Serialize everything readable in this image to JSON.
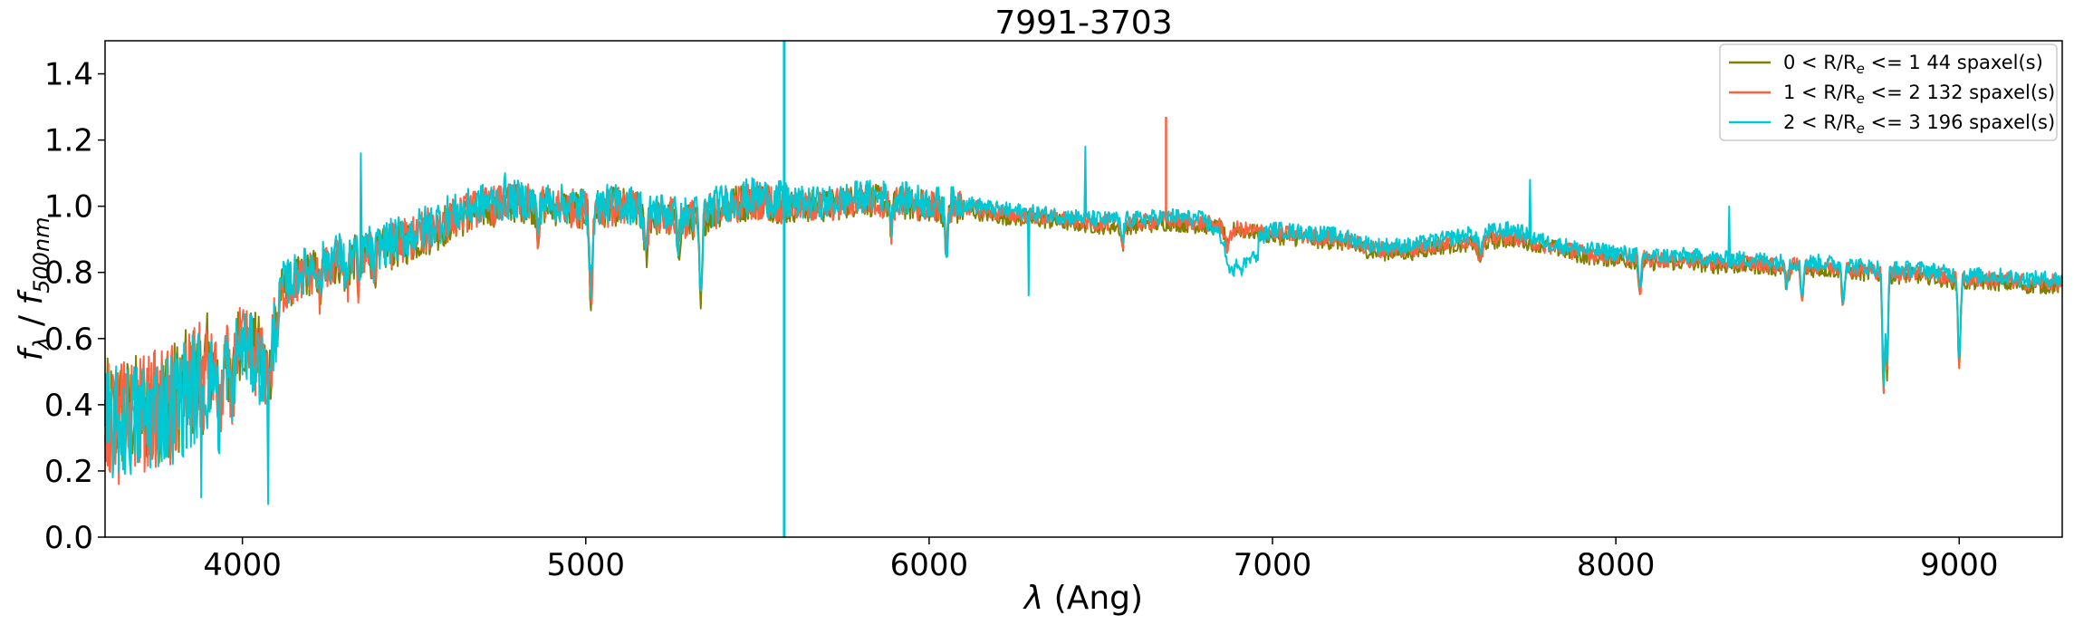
{
  "chart_data": {
    "type": "line",
    "title": "7991-3703",
    "xlabel_symbol": "λ",
    "xlabel_rest": " (Ang)",
    "ylabel_num": "f",
    "ylabel_num_sub": "λ",
    "ylabel_sep": " / ",
    "ylabel_den": "f",
    "ylabel_den_sub": "500nm",
    "xlim": [
      3600,
      9300
    ],
    "ylim": [
      0.0,
      1.5
    ],
    "xticks": [
      4000,
      5000,
      6000,
      7000,
      8000,
      9000
    ],
    "yticks": [
      0.0,
      0.2,
      0.4,
      0.6,
      0.8,
      1.0,
      1.2,
      1.4
    ],
    "ytick_labels": [
      "0.0",
      "0.2",
      "0.4",
      "0.6",
      "0.8",
      "1.0",
      "1.2",
      "1.4"
    ],
    "grid": false,
    "legend_position": "top-right",
    "series": [
      {
        "legend_pre": "0 < R/R",
        "legend_sub": "e",
        "legend_post": " <= 1 44 spaxel(s)",
        "color": "#808000",
        "x": [
          3600,
          3700,
          3800,
          3900,
          3950,
          4000,
          4050,
          4080,
          4100,
          4200,
          4300,
          4400,
          4500,
          4600,
          4700,
          4800,
          4900,
          5000,
          5100,
          5200,
          5300,
          5400,
          5500,
          5600,
          5700,
          5800,
          5900,
          6000,
          6100,
          6200,
          6300,
          6400,
          6500,
          6600,
          6700,
          6800,
          6900,
          7000,
          7100,
          7200,
          7300,
          7400,
          7500,
          7600,
          7700,
          7800,
          7900,
          8000,
          8100,
          8200,
          8300,
          8400,
          8500,
          8600,
          8700,
          8800,
          8900,
          9000,
          9100,
          9200,
          9300
        ],
        "y": [
          0.36,
          0.38,
          0.42,
          0.5,
          0.55,
          0.6,
          0.55,
          0.5,
          0.74,
          0.8,
          0.84,
          0.86,
          0.9,
          0.95,
          0.99,
          1.01,
          1.0,
          0.99,
          1.0,
          0.97,
          0.95,
          1.0,
          1.02,
          1.0,
          1.0,
          1.02,
          1.01,
          1.0,
          0.99,
          0.97,
          0.96,
          0.95,
          0.94,
          0.94,
          0.95,
          0.94,
          0.93,
          0.91,
          0.9,
          0.89,
          0.86,
          0.86,
          0.88,
          0.89,
          0.9,
          0.88,
          0.85,
          0.84,
          0.83,
          0.83,
          0.82,
          0.82,
          0.81,
          0.81,
          0.8,
          0.79,
          0.79,
          0.77,
          0.77,
          0.76,
          0.76
        ]
      },
      {
        "legend_pre": "1 < R/R",
        "legend_sub": "e",
        "legend_post": " <= 2 132 spaxel(s)",
        "color": "#ff6040",
        "x": [
          3600,
          3700,
          3800,
          3900,
          3950,
          4000,
          4050,
          4080,
          4100,
          4200,
          4300,
          4400,
          4500,
          4600,
          4700,
          4800,
          4900,
          5000,
          5100,
          5200,
          5300,
          5400,
          5500,
          5600,
          5700,
          5800,
          5900,
          6000,
          6100,
          6200,
          6300,
          6400,
          6500,
          6600,
          6700,
          6800,
          6900,
          7000,
          7100,
          7200,
          7300,
          7400,
          7500,
          7600,
          7700,
          7800,
          7900,
          8000,
          8100,
          8200,
          8300,
          8400,
          8500,
          8600,
          8700,
          8800,
          8900,
          9000,
          9100,
          9200,
          9300
        ],
        "y": [
          0.35,
          0.37,
          0.41,
          0.49,
          0.54,
          0.58,
          0.53,
          0.48,
          0.73,
          0.8,
          0.84,
          0.87,
          0.91,
          0.96,
          1.0,
          1.01,
          1.0,
          0.99,
          1.0,
          0.98,
          0.96,
          1.0,
          1.02,
          1.0,
          1.0,
          1.02,
          1.01,
          1.0,
          1.0,
          0.98,
          0.97,
          0.96,
          0.95,
          0.95,
          0.96,
          0.95,
          0.93,
          0.92,
          0.91,
          0.9,
          0.87,
          0.87,
          0.89,
          0.9,
          0.91,
          0.88,
          0.86,
          0.85,
          0.84,
          0.84,
          0.83,
          0.83,
          0.82,
          0.82,
          0.81,
          0.8,
          0.8,
          0.78,
          0.78,
          0.77,
          0.77
        ]
      },
      {
        "legend_pre": "2 < R/R",
        "legend_sub": "e",
        "legend_post": " <= 3 196 spaxel(s)",
        "color": "#00c8d2",
        "x": [
          3600,
          3700,
          3800,
          3900,
          3950,
          4000,
          4050,
          4080,
          4100,
          4200,
          4300,
          4400,
          4500,
          4600,
          4700,
          4800,
          4900,
          5000,
          5100,
          5200,
          5300,
          5400,
          5500,
          5600,
          5700,
          5800,
          5900,
          6000,
          6100,
          6200,
          6300,
          6400,
          6500,
          6600,
          6700,
          6800,
          6900,
          7000,
          7100,
          7200,
          7300,
          7400,
          7500,
          7600,
          7700,
          7800,
          7900,
          8000,
          8100,
          8200,
          8300,
          8400,
          8500,
          8600,
          8700,
          8800,
          8900,
          9000,
          9100,
          9200,
          9300
        ],
        "y": [
          0.33,
          0.36,
          0.4,
          0.48,
          0.53,
          0.58,
          0.52,
          0.45,
          0.75,
          0.82,
          0.86,
          0.88,
          0.92,
          0.97,
          1.01,
          1.02,
          1.01,
          1.0,
          1.01,
          0.99,
          0.97,
          1.01,
          1.03,
          1.01,
          1.01,
          1.03,
          1.03,
          1.01,
          1.01,
          0.99,
          0.98,
          0.97,
          0.96,
          0.96,
          0.97,
          0.96,
          0.86,
          0.93,
          0.92,
          0.91,
          0.88,
          0.88,
          0.9,
          0.92,
          0.93,
          0.89,
          0.87,
          0.86,
          0.85,
          0.85,
          0.84,
          0.84,
          0.83,
          0.83,
          0.82,
          0.81,
          0.81,
          0.79,
          0.79,
          0.78,
          0.78
        ]
      }
    ],
    "annotations": {
      "spike_orange": {
        "x": 6690,
        "y": 1.27
      },
      "spike_cyan_top": {
        "x": 5578,
        "y": 1.5
      },
      "spike_cyan_bottom": {
        "x": 5578,
        "y": 0.0
      }
    }
  }
}
